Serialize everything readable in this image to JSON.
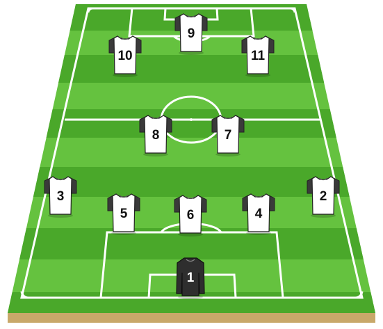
{
  "colors": {
    "grass_light": "#65c23f",
    "grass_dark": "#4aa82a",
    "lines": "#ffffff",
    "ground": "#c8a86a",
    "outfield_shirt": "#ffffff",
    "outfield_sleeve": "#3a3a3a",
    "goalkeeper_shirt": "#2e2e2e"
  },
  "players": [
    {
      "number": "1",
      "role": "goalkeeper"
    },
    {
      "number": "2",
      "role": "outfield"
    },
    {
      "number": "3",
      "role": "outfield"
    },
    {
      "number": "4",
      "role": "outfield"
    },
    {
      "number": "5",
      "role": "outfield"
    },
    {
      "number": "6",
      "role": "outfield"
    },
    {
      "number": "7",
      "role": "outfield"
    },
    {
      "number": "8",
      "role": "outfield"
    },
    {
      "number": "9",
      "role": "outfield"
    },
    {
      "number": "10",
      "role": "outfield"
    },
    {
      "number": "11",
      "role": "outfield"
    }
  ]
}
